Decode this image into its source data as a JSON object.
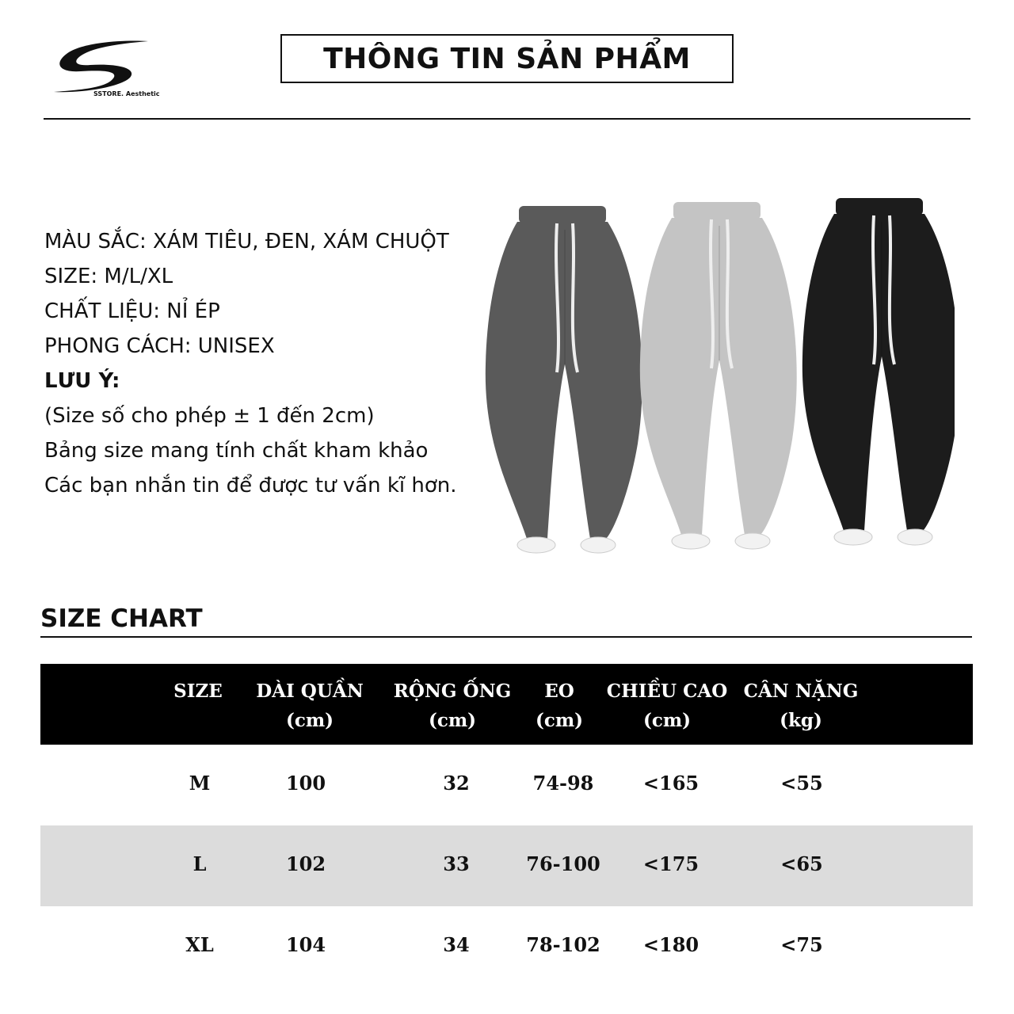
{
  "brand": {
    "logo_text": "SSTORE. Aesthetic"
  },
  "header": {
    "title": "THÔNG TIN SẢN PHẨM"
  },
  "info": {
    "lines": [
      "MÀU SẮC: XÁM TIÊU, ĐEN, XÁM CHUỘT",
      "SIZE: M/L/XL",
      "CHẤT LIỆU: NỈ ÉP",
      "PHONG CÁCH: UNISEX"
    ],
    "note_label": "LƯU Ý:",
    "notes": [
      "(Size số cho phép ± 1 đến 2cm)",
      "Bảng size mang tính chất kham khảo",
      "Các bạn nhắn tin để được tư vấn kĩ hơn."
    ]
  },
  "product_colors": [
    "#5a5a5a",
    "#c4c4c4",
    "#1c1c1c"
  ],
  "size_chart": {
    "title": "SIZE CHART",
    "headers": [
      {
        "l1": "SIZE",
        "l2": ""
      },
      {
        "l1": "DÀI QUẦN",
        "l2": "(cm)"
      },
      {
        "l1": "RỘNG ỐNG",
        "l2": "(cm)"
      },
      {
        "l1": "EO",
        "l2": "(cm)"
      },
      {
        "l1": "CHIỀU CAO",
        "l2": "(cm)"
      },
      {
        "l1": "CÂN NẶNG",
        "l2": "(kg)"
      }
    ],
    "rows": [
      [
        "M",
        "100",
        "32",
        "74-98",
        "<165",
        "<55"
      ],
      [
        "L",
        "102",
        "33",
        "76-100",
        "<175",
        "<65"
      ],
      [
        "XL",
        "104",
        "34",
        "78-102",
        "<180",
        "<75"
      ]
    ]
  }
}
